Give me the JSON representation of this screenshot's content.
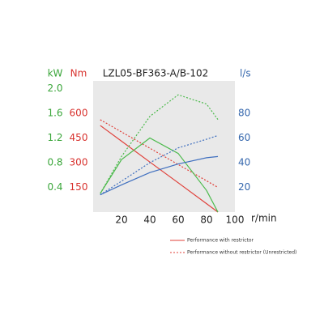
{
  "chart_data": {
    "type": "line",
    "title": "LZL05-BF363-A/B-102",
    "x": [
      5,
      20,
      40,
      60,
      80,
      88
    ],
    "xlim": [
      0,
      100
    ],
    "xticks": [
      20,
      40,
      60,
      80,
      100
    ],
    "xlabel": "r/min",
    "axes": [
      {
        "label": "kW",
        "color": "#3aa63a",
        "side": "left",
        "lim": [
          0,
          2
        ],
        "ticks": [
          0.4,
          0.8,
          1.2,
          1.6,
          {
            "value": 2,
            "label": "2.0"
          }
        ]
      },
      {
        "label": "Nm",
        "color": "#d8322e",
        "side": "left",
        "lim": [
          0,
          750
        ],
        "ticks": [
          150,
          300,
          450,
          600
        ]
      },
      {
        "label": "l/s",
        "color": "#3567ad",
        "side": "right",
        "lim": [
          0,
          100
        ],
        "ticks": [
          20,
          40,
          60,
          80
        ]
      }
    ],
    "series": [
      {
        "axis": 1,
        "color": "#e0403a",
        "dash": false,
        "values": [
          526,
          431,
          304,
          178,
          51,
          0
        ]
      },
      {
        "axis": 1,
        "color": "#e0403a",
        "dash": true,
        "values": [
          561,
          487,
          388,
          289,
          190,
          150
        ]
      },
      {
        "axis": 0,
        "color": "#4cba4c",
        "dash": false,
        "values": [
          0.3,
          0.85,
          1.2,
          0.95,
          0.35,
          0
        ]
      },
      {
        "axis": 0,
        "color": "#4cba4c",
        "dash": true,
        "values": [
          0.3,
          0.9,
          1.55,
          1.9,
          1.75,
          1.5
        ]
      },
      {
        "axis": 2,
        "color": "#3f6fbf",
        "dash": false,
        "values": [
          14,
          22,
          32,
          39,
          44,
          45
        ]
      },
      {
        "axis": 2,
        "color": "#3f6fbf",
        "dash": true,
        "values": [
          14,
          25,
          40,
          52,
          59,
          62
        ]
      }
    ],
    "legend": [
      {
        "label": "Performance with restrictor",
        "color": "#e0403a",
        "dash": false
      },
      {
        "label": "Performance without restrictor (Unrestricted)",
        "color": "#e0403a",
        "dash": true
      }
    ]
  }
}
